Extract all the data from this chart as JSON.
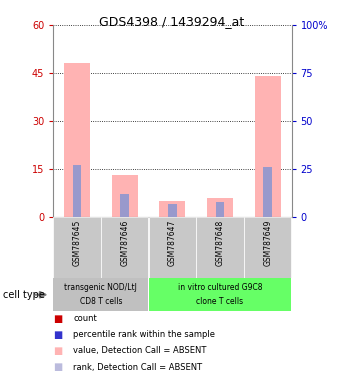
{
  "title": "GDS4398 / 1439294_at",
  "samples": [
    "GSM787645",
    "GSM787646",
    "GSM787647",
    "GSM787648",
    "GSM787649"
  ],
  "pink_bars": [
    48,
    13,
    5,
    6,
    44
  ],
  "blue_bars_pct": [
    27,
    12,
    7,
    8,
    26
  ],
  "pink_color": "#FFB3B3",
  "blue_color": "#9999CC",
  "ylim_left": [
    0,
    60
  ],
  "ylim_right": [
    0,
    100
  ],
  "yticks_left": [
    0,
    15,
    30,
    45,
    60
  ],
  "yticks_right": [
    0,
    25,
    50,
    75,
    100
  ],
  "ytick_labels_left": [
    "0",
    "15",
    "30",
    "45",
    "60"
  ],
  "ytick_labels_right": [
    "0",
    "25",
    "50",
    "75",
    "100%"
  ],
  "group1_label_line1": "transgenic NOD/LtJ",
  "group1_label_line2": "CD8 T cells",
  "group2_label_line1": "in vitro cultured G9C8",
  "group2_label_line2": "clone T cells",
  "group1_color": "#C0C0C0",
  "group2_color": "#66FF66",
  "cell_type_label": "cell type",
  "legend_items": [
    {
      "color": "#CC0000",
      "label": "count"
    },
    {
      "color": "#3333CC",
      "label": "percentile rank within the sample"
    },
    {
      "color": "#FFB3B3",
      "label": "value, Detection Call = ABSENT"
    },
    {
      "color": "#BBBBDD",
      "label": "rank, Detection Call = ABSENT"
    }
  ],
  "sample_box_color": "#C8C8C8",
  "left_tick_color": "#CC0000",
  "right_tick_color": "#0000CC",
  "title_fontsize": 9,
  "tick_fontsize": 7,
  "sample_fontsize": 5.5,
  "group_fontsize": 5.5,
  "legend_fontsize": 6,
  "cell_type_fontsize": 7
}
